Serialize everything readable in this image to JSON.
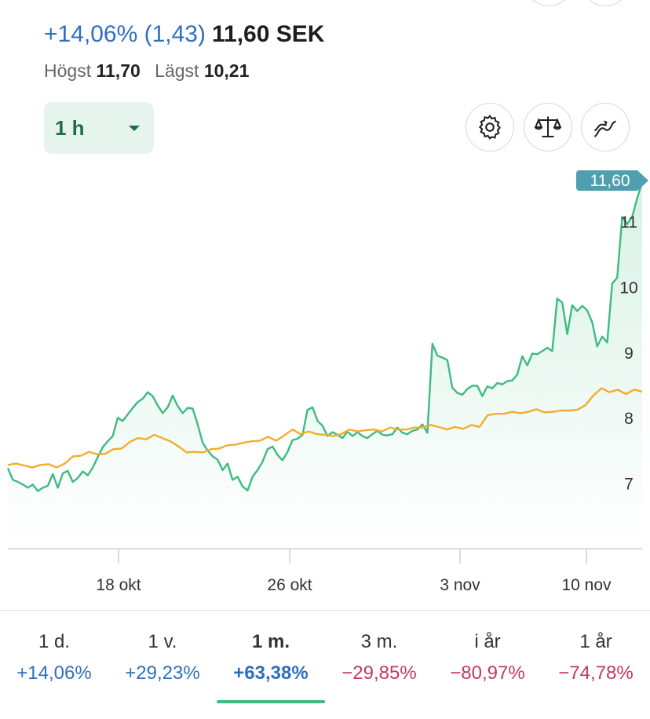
{
  "header": {
    "change": "+14,06% (1,43)",
    "price": "11,60 SEK",
    "high_label": "Högst",
    "high_value": "11,70",
    "low_label": "Lägst",
    "low_value": "10,21"
  },
  "interval": {
    "selected": "1 h"
  },
  "toolbar": {
    "icons": [
      "settings-icon",
      "compare-icon",
      "indicators-icon"
    ]
  },
  "chart_data": {
    "type": "line",
    "ylim": [
      6,
      11.6
    ],
    "y_ticks": [
      "11",
      "10",
      "9",
      "8",
      "7"
    ],
    "x_tick_labels": [
      "18 okt",
      "26 okt",
      "3 nov",
      "10 nov"
    ],
    "last_value_label": "11,60",
    "series": [
      {
        "color": "#3dbb80",
        "values": [
          7.23,
          7.05,
          7.02,
          6.98,
          6.93,
          6.98,
          6.88,
          6.93,
          6.96,
          7.14,
          6.93,
          7.15,
          7.19,
          7.02,
          7.08,
          7.18,
          7.12,
          7.24,
          7.4,
          7.55,
          7.64,
          7.72,
          8.0,
          7.95,
          8.05,
          8.15,
          8.24,
          8.29,
          8.39,
          8.33,
          8.19,
          8.07,
          8.16,
          8.34,
          8.18,
          8.07,
          8.15,
          8.14,
          7.9,
          7.62,
          7.5,
          7.41,
          7.36,
          7.2,
          7.3,
          7.05,
          7.1,
          6.95,
          6.89,
          7.1,
          7.2,
          7.33,
          7.52,
          7.56,
          7.43,
          7.35,
          7.48,
          7.66,
          7.68,
          7.74,
          8.12,
          8.16,
          7.95,
          7.88,
          7.72,
          7.78,
          7.74,
          7.69,
          7.79,
          7.72,
          7.78,
          7.72,
          7.69,
          7.75,
          7.8,
          7.74,
          7.73,
          7.75,
          7.85,
          7.77,
          7.75,
          7.8,
          7.82,
          7.9,
          7.77,
          9.13,
          8.95,
          8.92,
          8.88,
          8.46,
          8.38,
          8.35,
          8.44,
          8.49,
          8.49,
          8.33,
          8.48,
          8.45,
          8.53,
          8.51,
          8.56,
          8.57,
          8.66,
          8.94,
          8.8,
          8.98,
          8.97,
          9.02,
          9.07,
          9.02,
          9.82,
          9.76,
          9.28,
          9.72,
          9.63,
          9.71,
          9.64,
          9.46,
          9.09,
          9.24,
          9.15,
          10.05,
          10.14,
          11.07,
          10.96,
          11.07,
          11.35,
          11.6
        ]
      },
      {
        "color": "#f2ad2e",
        "values": [
          7.28,
          7.3,
          7.27,
          7.24,
          7.28,
          7.29,
          7.24,
          7.3,
          7.41,
          7.42,
          7.48,
          7.44,
          7.45,
          7.52,
          7.53,
          7.63,
          7.69,
          7.67,
          7.74,
          7.69,
          7.64,
          7.56,
          7.47,
          7.48,
          7.47,
          7.52,
          7.53,
          7.58,
          7.59,
          7.62,
          7.64,
          7.65,
          7.71,
          7.65,
          7.73,
          7.82,
          7.75,
          7.79,
          7.75,
          7.74,
          7.72,
          7.75,
          7.82,
          7.79,
          7.81,
          7.82,
          7.79,
          7.85,
          7.82,
          7.82,
          7.85,
          7.85,
          7.89,
          7.86,
          7.82,
          7.86,
          7.83,
          7.89,
          7.86,
          8.04,
          8.06,
          8.06,
          8.09,
          8.07,
          8.09,
          8.13,
          8.08,
          8.09,
          8.11,
          8.11,
          8.12,
          8.19,
          8.34,
          8.45,
          8.39,
          8.43,
          8.36,
          8.43,
          8.4
        ]
      }
    ]
  },
  "periods": [
    {
      "label": "1 d.",
      "value": "+14,06%"
    },
    {
      "label": "1 v.",
      "value": "+29,23%"
    },
    {
      "label": "1 m.",
      "value": "+63,38%",
      "active": true
    },
    {
      "label": "3 m.",
      "value": "−29,85%"
    },
    {
      "label": "i år",
      "value": "−80,97%"
    },
    {
      "label": "1 år",
      "value": "−74,78%"
    }
  ]
}
